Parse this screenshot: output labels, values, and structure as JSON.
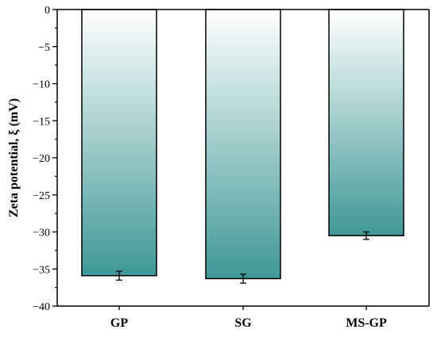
{
  "chart_data": {
    "type": "bar",
    "title": "",
    "xlabel": "",
    "ylabel": "Zeta potential, ξ (mV)",
    "categories": [
      "GP",
      "SG",
      "MS-GP"
    ],
    "values": [
      -35.9,
      -36.3,
      -30.5
    ],
    "errors": [
      0.6,
      0.6,
      0.5
    ],
    "ylim": [
      -40,
      0
    ],
    "yticks": [
      0,
      -5,
      -10,
      -15,
      -20,
      -25,
      -30,
      -35,
      -40
    ],
    "ytick_labels": [
      "0",
      "−5",
      "−10",
      "−15",
      "−20",
      "−25",
      "−30",
      "−35",
      "−40"
    ],
    "grid": false,
    "legend": "none",
    "colors": {
      "bar_light": "#ffffff",
      "bar_dark": "#3f9896",
      "stroke": "#000000"
    }
  }
}
